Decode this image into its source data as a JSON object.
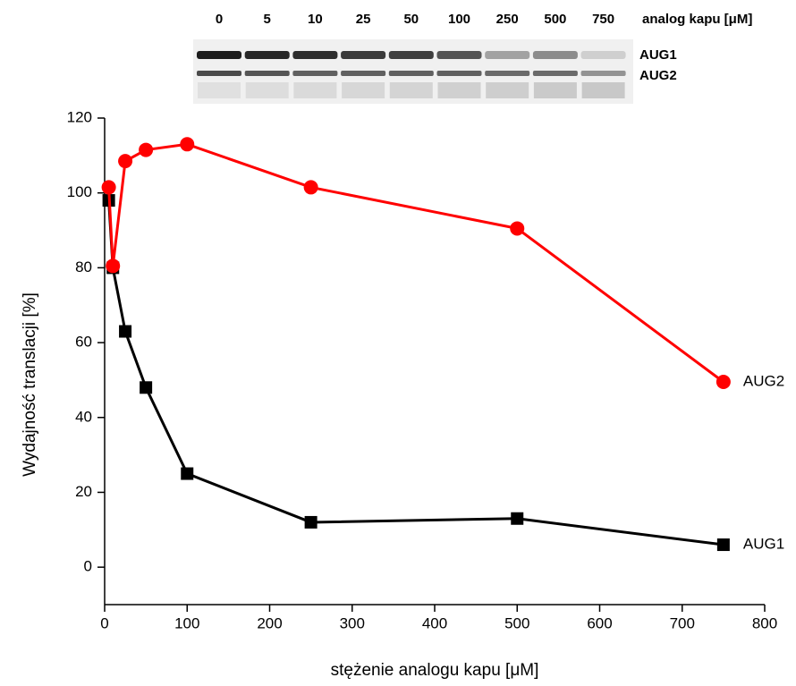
{
  "gel": {
    "lane_labels": [
      "0",
      "5",
      "10",
      "25",
      "50",
      "100",
      "250",
      "500",
      "750"
    ],
    "title": "analog kapu [μM]",
    "band_labels": [
      "AUG1",
      "AUG2"
    ]
  },
  "chart_data": {
    "type": "line",
    "x_label": "stężenie analogu kapu [μM]",
    "y_label": "Wydajność translacji [%]",
    "xlim": [
      0,
      800
    ],
    "xticks": [
      0,
      100,
      200,
      300,
      400,
      500,
      600,
      700,
      800
    ],
    "ylim": [
      -10,
      120
    ],
    "yticks": [
      0,
      20,
      40,
      60,
      80,
      100,
      120
    ],
    "series": [
      {
        "name": "AUG1",
        "color": "#000000",
        "marker": "square",
        "x": [
          5,
          10,
          25,
          50,
          100,
          250,
          500,
          750
        ],
        "values": [
          98,
          80,
          63,
          48,
          25,
          12,
          13,
          6
        ]
      },
      {
        "name": "AUG2",
        "color": "#ff0000",
        "marker": "circle",
        "x": [
          5,
          10,
          25,
          50,
          100,
          250,
          500,
          750
        ],
        "values": [
          101.5,
          80.5,
          108.5,
          111.5,
          113,
          101.5,
          90.5,
          49.5
        ]
      }
    ]
  }
}
